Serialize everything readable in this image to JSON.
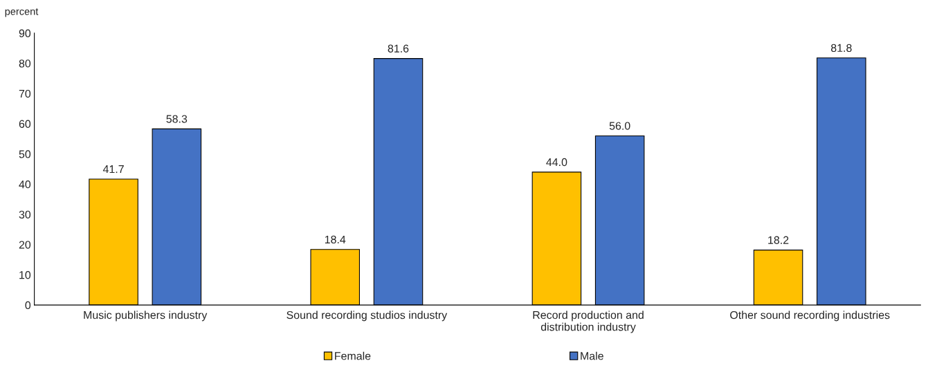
{
  "chart_data": {
    "type": "bar",
    "ylabel": "percent",
    "categories": [
      "Music publishers industry",
      "Sound recording studios industry",
      "Record production and\ndistribution industry",
      "Other sound recording industries"
    ],
    "series": [
      {
        "name": "Female",
        "color": "#ffc000",
        "values": [
          41.7,
          18.4,
          44.0,
          18.2
        ],
        "value_labels": [
          "41.7",
          "18.4",
          "44.0",
          "18.2"
        ]
      },
      {
        "name": "Male",
        "color": "#4472c4",
        "values": [
          58.3,
          81.6,
          56.0,
          81.8
        ],
        "value_labels": [
          "58.3",
          "81.6",
          "56.0",
          "81.8"
        ]
      }
    ],
    "ylim": [
      0,
      90
    ],
    "yticks": [
      0,
      10,
      20,
      30,
      40,
      50,
      60,
      70,
      80,
      90
    ],
    "grid": false,
    "legend": "bottom"
  }
}
